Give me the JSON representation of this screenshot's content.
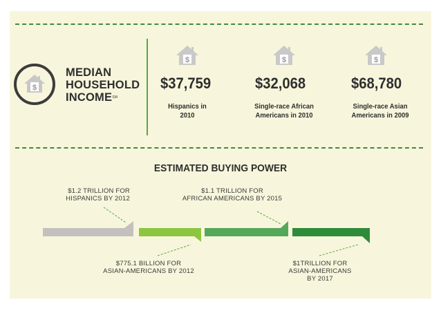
{
  "median": {
    "title_lines": [
      "MEDIAN",
      "HOUSEHOLD",
      "INCOME"
    ],
    "trademark": "SM",
    "stats": [
      {
        "amount": "$37,759",
        "desc_lines": [
          "Hispanics in",
          "2010"
        ]
      },
      {
        "amount": "$32,068",
        "desc_lines": [
          "Single-race African",
          "Americans in 2010"
        ]
      },
      {
        "amount": "$68,780",
        "desc_lines": [
          "Single-race Asian",
          "Americans in 2009"
        ]
      }
    ]
  },
  "buying_power": {
    "title": "ESTIMATED BUYING POWER",
    "notes": [
      {
        "lines": [
          "$1.2 TRILLION FOR",
          "HISPANICS BY 2012"
        ]
      },
      {
        "lines": [
          "$1.1 TRILLION FOR",
          "AFRICAN AMERICANS BY 2015"
        ]
      },
      {
        "lines": [
          "$775.1 BILLION  FOR",
          "ASIAN-AMERICANS BY 2012"
        ]
      },
      {
        "lines": [
          "$1TRILLION FOR",
          "ASIAN-AMERICANS",
          "BY 2017"
        ]
      }
    ],
    "bars": [
      {
        "label": "hispanics-2012",
        "color": "#c4c0bf"
      },
      {
        "label": "asian-americans-2012",
        "color": "#8cc63f"
      },
      {
        "label": "african-americans-2015",
        "color": "#55a85a"
      },
      {
        "label": "asian-americans-2017",
        "color": "#2e8b3a"
      }
    ]
  },
  "icons": {
    "house": "house-dollar-icon"
  },
  "colors": {
    "panel": "#f7f6dc",
    "dash": "#3f8a3c",
    "text": "#2e2e2e"
  }
}
